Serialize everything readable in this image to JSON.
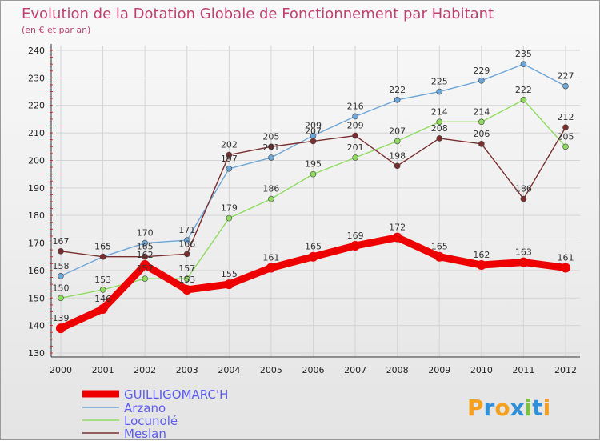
{
  "chart_data": {
    "type": "line",
    "title": "Evolution de la Dotation Globale de Fonctionnement par Habitant",
    "subtitle": "(en € et par an)",
    "x": [
      "2000",
      "2001",
      "2002",
      "2003",
      "2004",
      "2005",
      "2006",
      "2007",
      "2008",
      "2009",
      "2010",
      "2011",
      "2012"
    ],
    "ylim": [
      130,
      240
    ],
    "yticks": [
      130,
      140,
      150,
      160,
      170,
      180,
      190,
      200,
      210,
      220,
      230,
      240
    ],
    "grid": true,
    "series": [
      {
        "name": "GUILLIGOMARC'H",
        "color": "#ee0000",
        "values": [
          139,
          146,
          162,
          153,
          155,
          161,
          165,
          169,
          172,
          165,
          162,
          163,
          161
        ]
      },
      {
        "name": "Arzano",
        "color": "#6fa6d8",
        "values": [
          158,
          165,
          170,
          171,
          197,
          201,
          209,
          216,
          222,
          225,
          229,
          235,
          227
        ]
      },
      {
        "name": "Locunolé",
        "color": "#8edb5f",
        "values": [
          150,
          153,
          157,
          157,
          179,
          186,
          195,
          201,
          207,
          214,
          214,
          222,
          205
        ]
      },
      {
        "name": "Meslan",
        "color": "#7a2e2e",
        "values": [
          167,
          165,
          165,
          166,
          202,
          205,
          207,
          209,
          198,
          208,
          206,
          186,
          212
        ]
      }
    ]
  },
  "logo": {
    "text": "Proxiti"
  }
}
